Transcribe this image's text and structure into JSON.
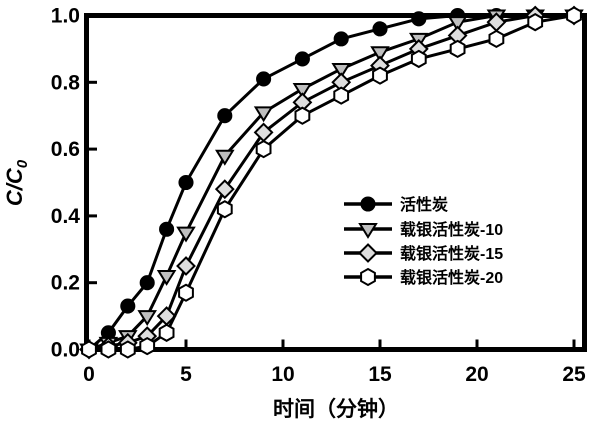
{
  "figure": {
    "background_color": "#ffffff",
    "line_color": "#000000",
    "frame_color": "#000000"
  },
  "chart_data": {
    "type": "line",
    "title": "",
    "xlabel": "时间（分钟）",
    "ylabel": "C/C0",
    "ylabel_main": "C/C",
    "ylabel_sub": "0",
    "xlim": [
      0,
      25.5
    ],
    "ylim": [
      0.0,
      1.0
    ],
    "grid": false,
    "legend_position": "inside-middle-right",
    "x_ticks": [
      0,
      5,
      10,
      15,
      20,
      25
    ],
    "x_tick_labels": [
      "0",
      "5",
      "10",
      "15",
      "20",
      "25"
    ],
    "y_ticks": [
      0.0,
      0.2,
      0.4,
      0.6,
      0.8,
      1.0
    ],
    "y_tick_labels": [
      "0.0",
      "0.2",
      "0.4",
      "0.6",
      "0.8",
      "1.0"
    ],
    "x": [
      0,
      1,
      2,
      3,
      4,
      5,
      7,
      9,
      11,
      13,
      15,
      17,
      19,
      21,
      23,
      25
    ],
    "series": [
      {
        "name": "活性炭",
        "marker": "circle",
        "marker_fill": "#000000",
        "values": [
          0.0,
          0.05,
          0.13,
          0.2,
          0.36,
          0.5,
          0.7,
          0.81,
          0.87,
          0.93,
          0.96,
          0.99,
          1.0,
          1.0,
          1.0,
          1.0
        ]
      },
      {
        "name": "载银活性炭-10",
        "marker": "triangle-down",
        "marker_fill": "#bfbfbf",
        "values": [
          0.0,
          0.02,
          0.04,
          0.1,
          0.22,
          0.35,
          0.58,
          0.71,
          0.78,
          0.84,
          0.89,
          0.93,
          0.98,
          1.0,
          1.0,
          1.0
        ]
      },
      {
        "name": "载银活性炭-15",
        "marker": "diamond",
        "marker_fill": "#dedede",
        "values": [
          0.0,
          0.01,
          0.02,
          0.04,
          0.1,
          0.25,
          0.48,
          0.65,
          0.74,
          0.8,
          0.85,
          0.9,
          0.94,
          0.98,
          1.0,
          1.0
        ]
      },
      {
        "name": "载银活性炭-20",
        "marker": "hexagon",
        "marker_fill": "#ffffff",
        "values": [
          0.0,
          0.0,
          0.0,
          0.01,
          0.05,
          0.17,
          0.42,
          0.6,
          0.7,
          0.76,
          0.82,
          0.87,
          0.9,
          0.93,
          0.98,
          1.0
        ]
      }
    ]
  }
}
